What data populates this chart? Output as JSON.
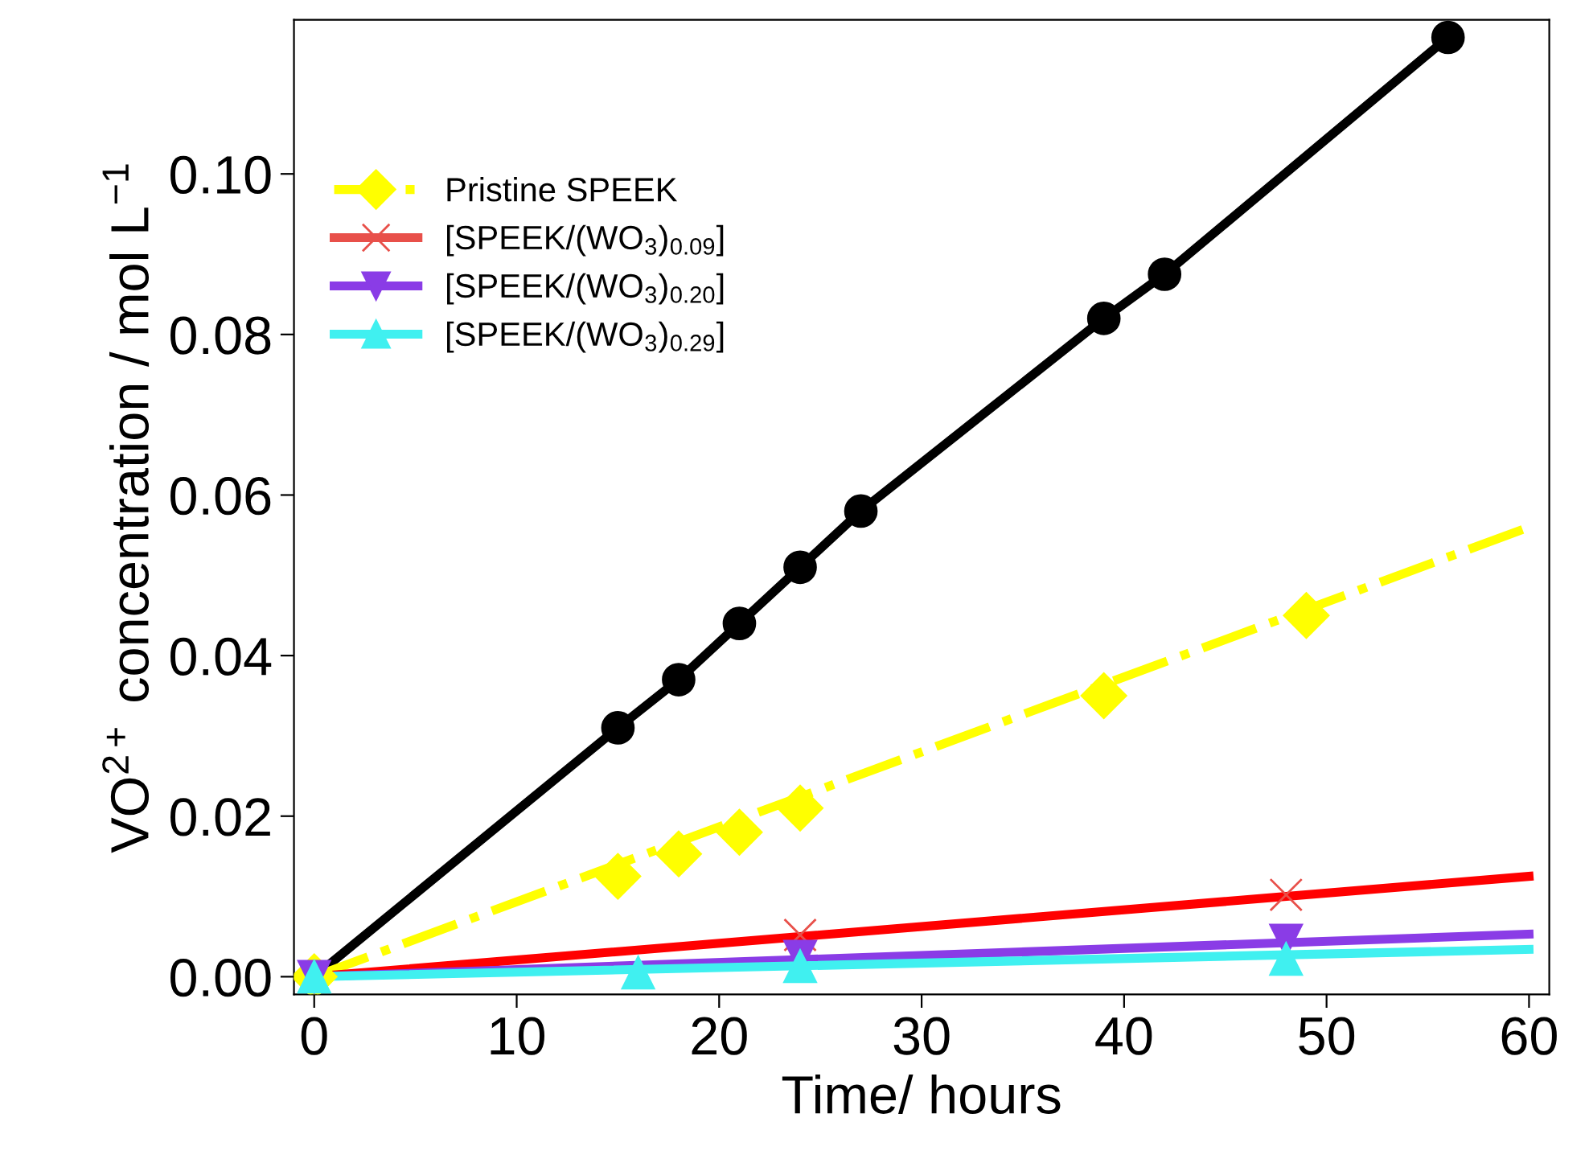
{
  "chart_data": {
    "type": "scatter",
    "xlabel": "Time/ hours",
    "ylabel": "VO$^{2+}$ concentration / mol L$^{−1}$",
    "xlim": [
      -1,
      61
    ],
    "ylim": [
      -0.0022,
      0.1192
    ],
    "xticks": [
      0,
      10,
      20,
      30,
      40,
      50,
      60
    ],
    "yticks": [
      {
        "value": 0,
        "label": "0.00"
      },
      {
        "value": 0.02,
        "label": "0.02"
      },
      {
        "value": 0.04,
        "label": "0.04"
      },
      {
        "value": 0.06,
        "label": "0.06"
      },
      {
        "value": 0.08,
        "label": "0.08"
      },
      {
        "value": 0.1,
        "label": "0.10"
      }
    ],
    "grid": false,
    "legend": "top left",
    "series": [
      {
        "type": "line",
        "color": "#000000",
        "marker": "circle",
        "line_style": "solid",
        "x": [
          0,
          15,
          18,
          21,
          24,
          27,
          39,
          42,
          56
        ],
        "values": [
          0,
          0.031,
          0.037,
          0.044,
          0.051,
          0.058,
          0.082,
          0.0875,
          0.117
        ]
      },
      {
        "type": "line",
        "color": "#ffff00",
        "line_style": "dashdot",
        "x": [
          0,
          60
        ],
        "values": [
          0,
          0.056
        ]
      },
      {
        "name": "Pristine SPEEK",
        "color": "#ffff00",
        "marker": "diamond",
        "line_style": "dashdot",
        "x": [
          0,
          15,
          18,
          21,
          24,
          39,
          49
        ],
        "values": [
          0,
          0.0125,
          0.0153,
          0.018,
          0.021,
          0.035,
          0.045
        ]
      },
      {
        "type": "line",
        "color": "#ff0000",
        "line_style": "solid",
        "x": [
          0,
          60
        ],
        "values": [
          0,
          0.0125
        ]
      },
      {
        "name": "[SPEEK/(WO$_{3}$)$_{0.09}$]",
        "color": "#e8504a",
        "marker": "cross",
        "line_style": "solid",
        "x": [
          0,
          24,
          48
        ],
        "values": [
          0,
          0.0052,
          0.0102
        ]
      },
      {
        "type": "line",
        "color": "#8a3ce6",
        "line_style": "solid",
        "x": [
          0,
          60
        ],
        "values": [
          0,
          0.0053
        ]
      },
      {
        "name": "[SPEEK/(WO$_{3}$)$_{0.20}$]",
        "color": "#8a3ce6",
        "marker": "triangle_down",
        "line_style": "solid",
        "x": [
          0,
          24,
          48
        ],
        "values": [
          0,
          0.0025,
          0.0045
        ]
      },
      {
        "type": "line",
        "color": "#40f0f0",
        "line_style": "solid",
        "x": [
          0,
          60
        ],
        "values": [
          0,
          0.0034
        ]
      },
      {
        "name": "[SPEEK/(WO$_{3}$)$_{0.29}$]",
        "color": "#40f0f0",
        "marker": "triangle",
        "line_style": "solid",
        "x": [
          0,
          16,
          24,
          48
        ],
        "values": [
          0,
          0.0005,
          0.0013,
          0.0022
        ]
      }
    ]
  }
}
